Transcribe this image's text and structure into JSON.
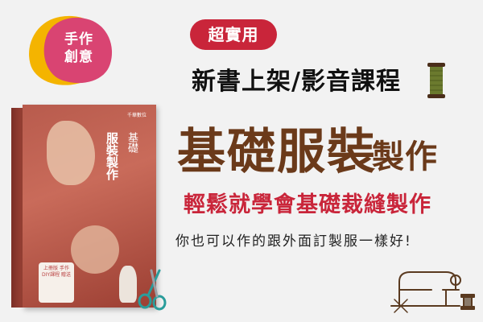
{
  "badge": {
    "line1": "手作",
    "line2": "創意"
  },
  "tag": "超實用",
  "headline1": "新書上架/影音課程",
  "headline2": {
    "big": "基礎服裝",
    "small": "製作"
  },
  "headline3": "輕鬆就學會基礎裁縫製作",
  "headline4": "你也可以作的跟外面訂製服一樣好!",
  "book": {
    "publisher": "千華數位",
    "title_main": "服裝製作",
    "title_sub": "基礎",
    "sticker": "上冊版 手作 DIY課程 贈送"
  },
  "colors": {
    "accent": "#c9253a",
    "brown": "#6b3a1a",
    "background": "#f2f2f2",
    "badge_yellow": "#f4b400",
    "badge_pink": "#d94472"
  },
  "icons": [
    "spool-icon",
    "sewing-machine-icon",
    "scissors-icon"
  ]
}
